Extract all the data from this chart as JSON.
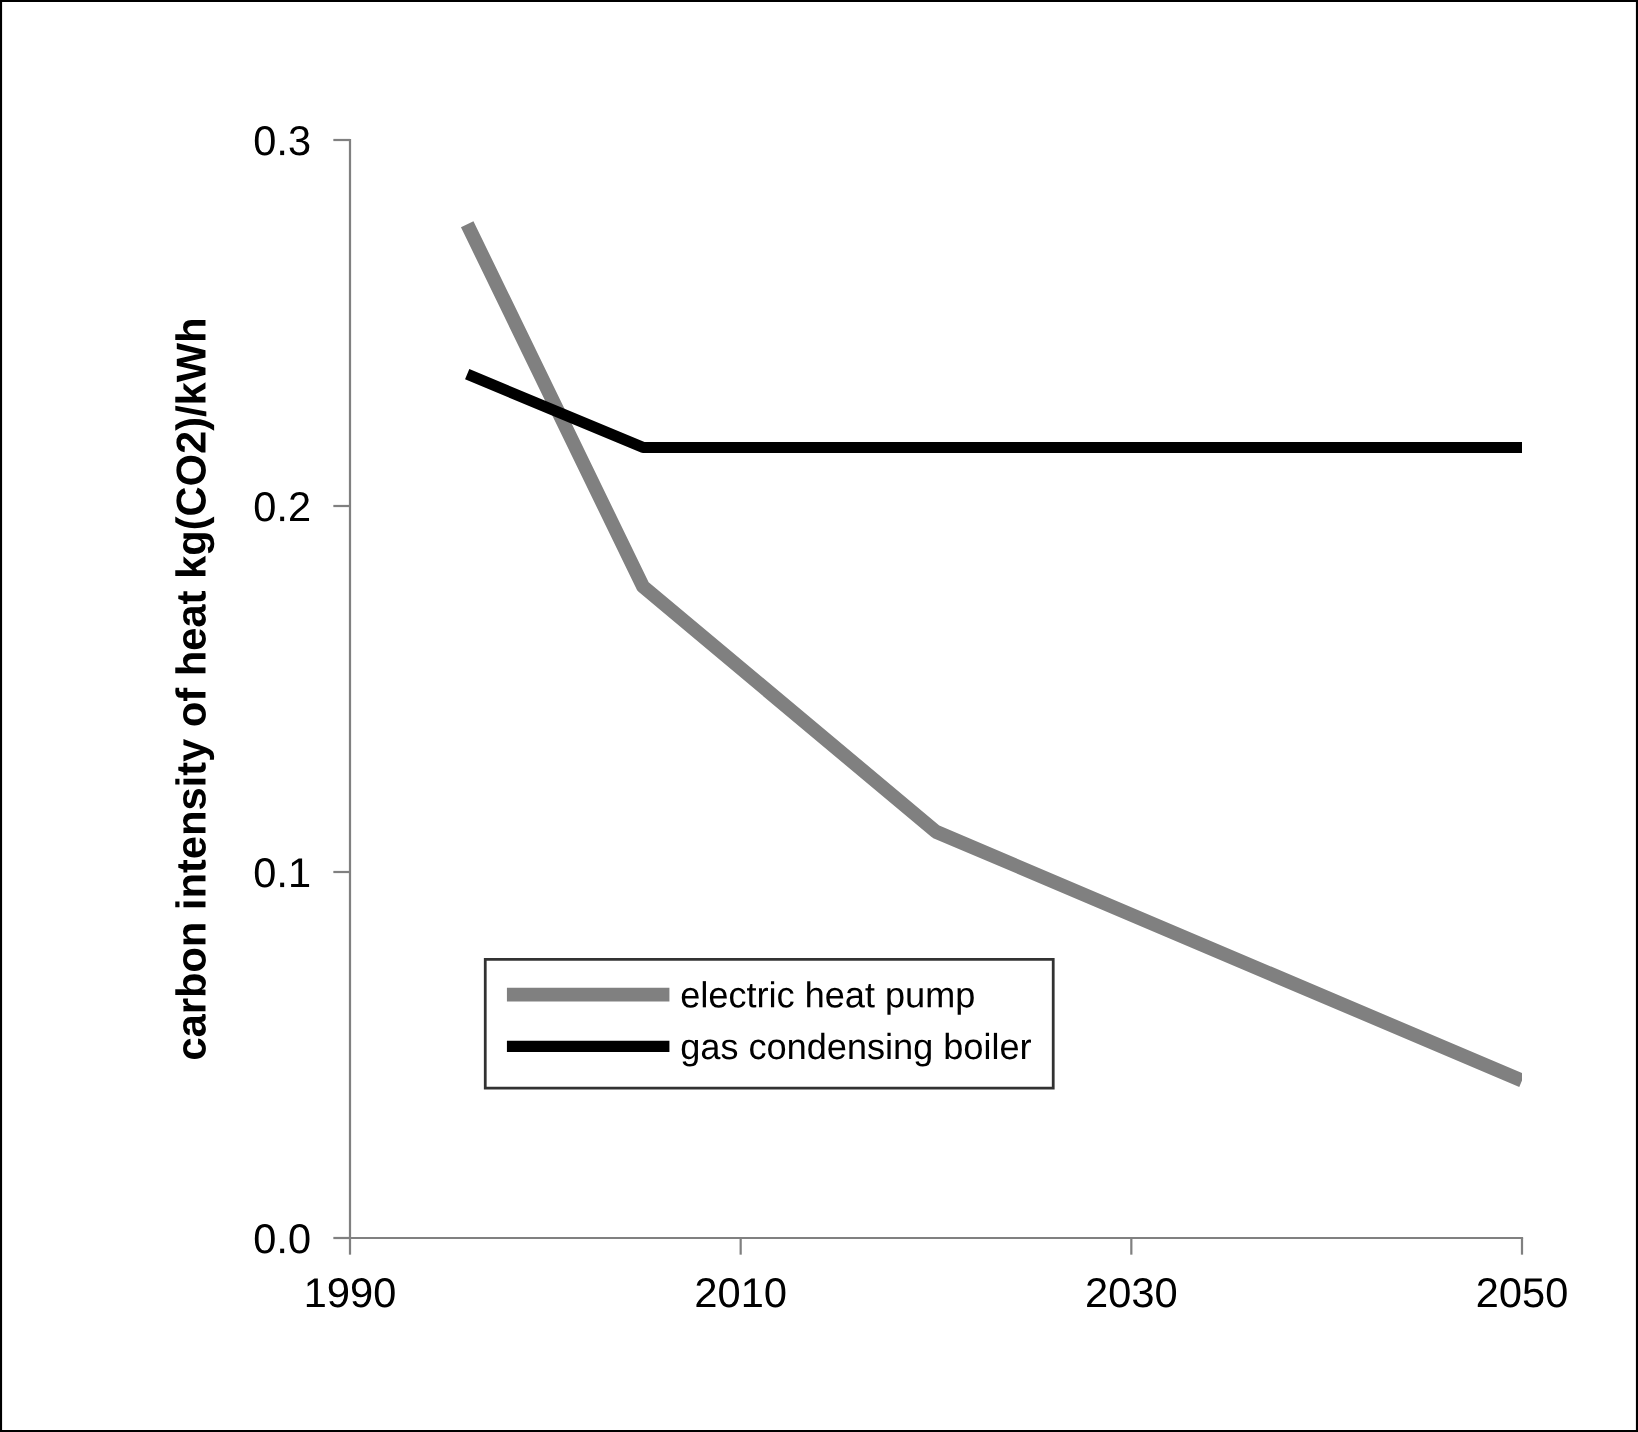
{
  "chart_data": {
    "type": "line",
    "ylabel": "carbon intensity of heat kg(CO2)/kWh",
    "xlim": [
      1990,
      2050
    ],
    "xticks": [
      1990,
      2010,
      2030,
      2050
    ],
    "ylim": [
      0.0,
      0.3
    ],
    "yticks": [
      {
        "value": 0.0,
        "label": "0.0"
      },
      {
        "value": 0.1,
        "label": "0.1"
      },
      {
        "value": 0.2,
        "label": "0.2"
      },
      {
        "value": 0.3,
        "label": "0.3"
      }
    ],
    "series": [
      {
        "name": "electric heat pump",
        "color": "#808080",
        "x": [
          1996,
          2005,
          2020,
          2050
        ],
        "values": [
          0.277,
          0.178,
          0.111,
          0.043
        ]
      },
      {
        "name": "gas condensing boiler",
        "color": "#000000",
        "x": [
          1996,
          2005,
          2050
        ],
        "values": [
          0.236,
          0.216,
          0.216
        ]
      }
    ],
    "legend": "bottom left",
    "grid": false,
    "marker": "none",
    "line_style": "solid"
  }
}
